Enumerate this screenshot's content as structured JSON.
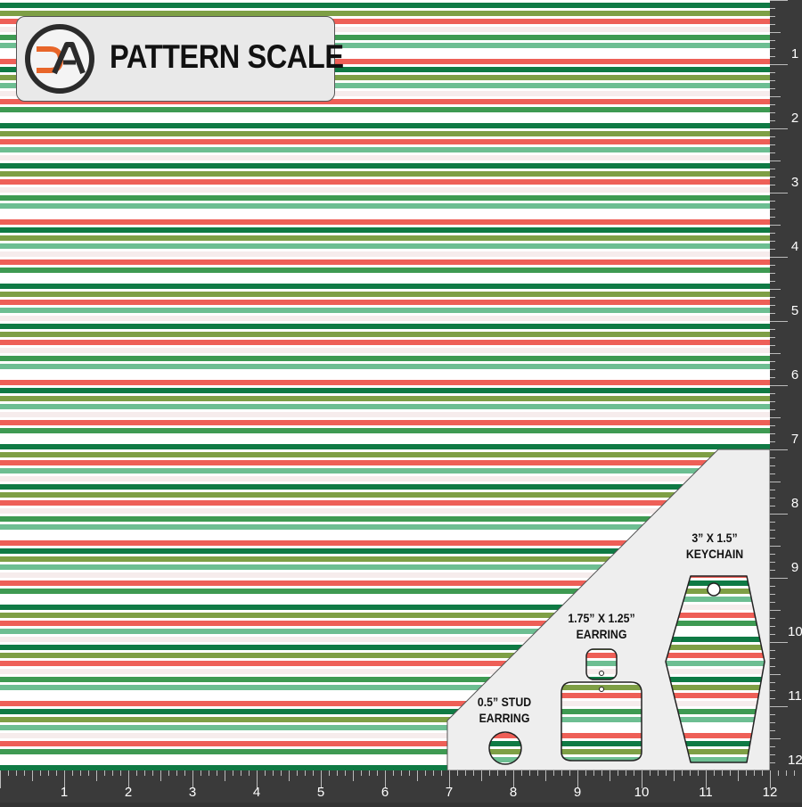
{
  "header": {
    "logo_text": "DA",
    "title": "PATTERN SCALE"
  },
  "pattern": {
    "stripe_colors": [
      "#0f7a44",
      "#7e9f45",
      "#ee5f57",
      "#f6ecec",
      "#3e9a52",
      "#6dbe92",
      "#ffffff"
    ]
  },
  "ruler": {
    "side_labels": [
      "1",
      "2",
      "3",
      "4",
      "5",
      "6",
      "7",
      "8",
      "9",
      "10",
      "11",
      "12"
    ],
    "bottom_labels": [
      "1",
      "2",
      "3",
      "4",
      "5",
      "6",
      "7",
      "8",
      "9",
      "10",
      "11",
      "12"
    ]
  },
  "templates": {
    "stud": {
      "line1": "0.5” STUD",
      "line2": "EARRING"
    },
    "earring": {
      "line1": "1.75” X 1.25”",
      "line2": "EARRING"
    },
    "keychain": {
      "line1": "3” X 1.5”",
      "line2": "KEYCHAIN"
    }
  },
  "colors": {
    "panel": "#eeeeee",
    "ruler": "#3a3a3a",
    "logo_orange": "#e8662a",
    "logo_dark": "#2b2b2b"
  }
}
